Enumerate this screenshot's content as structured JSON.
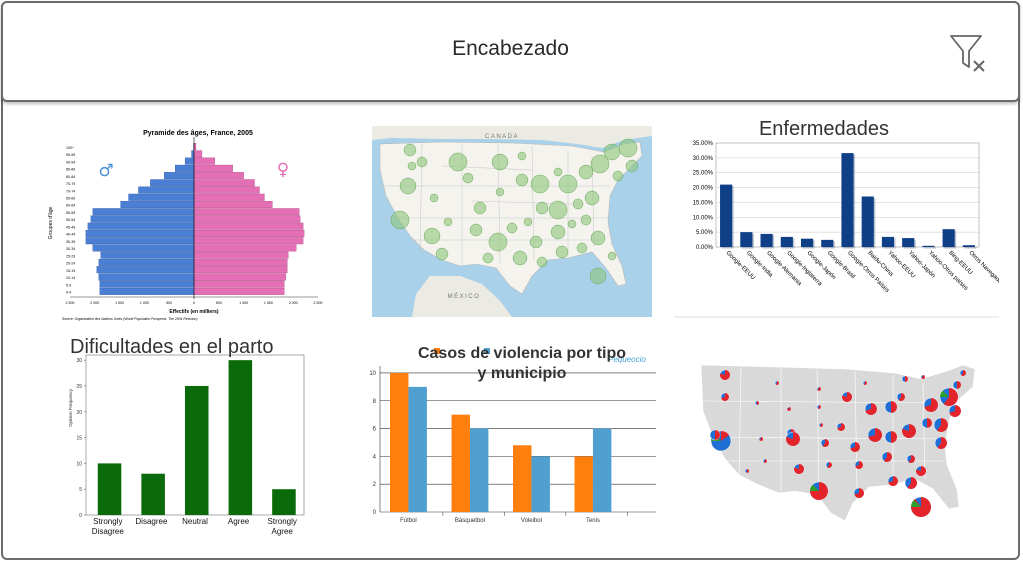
{
  "header": {
    "title": "Encabezado",
    "filter_icon": "filter-clear-icon"
  },
  "tiles": {
    "pyramid": {
      "title": "Pyramide des âges, France, 2005",
      "ylabel": "Groupes d'âge",
      "xlabel": "Effectifs (en milliers)",
      "source": "Source: Organisation des Nations Unies (World Population Prospects: The 2004 Revision)",
      "male_symbol": "♂",
      "female_symbol": "♀",
      "colors": {
        "male": "#4a7fd4",
        "female": "#e56fb4"
      }
    },
    "us_map_bubbles": {
      "label_canada": "CANADA",
      "label_mexico": "MÉXICO"
    },
    "diseases": {
      "title": "Enfermedades"
    },
    "birth": {
      "title": "Dificultades en el parto",
      "ylabel": "Opinion Frequency"
    },
    "violence": {
      "title_line1": "Casos de violencia por tipo",
      "title_line2": "y municipio",
      "logo": "Pequeocio"
    },
    "us_map_pies": {}
  },
  "chart_data": [
    {
      "type": "bar",
      "title": "Pyramide des âges, France, 2005",
      "xlabel": "Effectifs (en milliers)",
      "ylabel": "Groupes d'âge",
      "categories": [
        "0-4",
        "5-9",
        "10-14",
        "15-19",
        "20-24",
        "25-29",
        "30-34",
        "35-39",
        "40-44",
        "45-49",
        "50-54",
        "55-59",
        "60-64",
        "65-69",
        "70-74",
        "75-79",
        "80-84",
        "85-89",
        "90-94",
        "95-99",
        "100+"
      ],
      "series": [
        {
          "name": "♂",
          "values": [
            1900,
            1900,
            1920,
            1960,
            1920,
            1880,
            2040,
            2180,
            2180,
            2140,
            2080,
            2040,
            1480,
            1320,
            1120,
            880,
            600,
            380,
            180,
            50,
            10
          ]
        },
        {
          "name": "♀",
          "values": [
            1820,
            1820,
            1850,
            1880,
            1880,
            1900,
            2060,
            2200,
            2220,
            2200,
            2140,
            2120,
            1580,
            1420,
            1320,
            1220,
            1000,
            780,
            420,
            160,
            40
          ]
        }
      ],
      "xticks": [
        "2 500",
        "2 000",
        "1 500",
        "1 000",
        "500",
        "0",
        "500",
        "1 000",
        "1 500",
        "2 000",
        "2 500"
      ],
      "xlim": [
        -2500,
        2500
      ]
    },
    {
      "type": "bar",
      "title": "Enfermedades",
      "categories": [
        "Google-EEUU",
        "Google-India",
        "Google-Alemania",
        "Google-Inglaterra",
        "Google-Japón",
        "Google-Brasil",
        "Google-Otros Países",
        "Baidu-China",
        "Yahoo-EEUU",
        "Yahoo-Japón",
        "Yahoo-Otros países",
        "Bing-EEUU",
        "Otros Navegadores"
      ],
      "values": [
        21.0,
        5.0,
        4.4,
        3.4,
        2.8,
        2.4,
        31.6,
        17.0,
        3.4,
        3.0,
        0.4,
        6.0,
        0.6
      ],
      "yticks": [
        "0.00%",
        "5.00%",
        "10.00%",
        "15.00%",
        "20.00%",
        "25.00%",
        "30.00%",
        "35.00%"
      ],
      "ylim": [
        0,
        35
      ]
    },
    {
      "type": "bar",
      "title": "Dificultades en el parto",
      "ylabel": "Opinion Frequency",
      "categories": [
        "Strongly Disagree",
        "Disagree",
        "Neutral",
        "Agree",
        "Strongly Agree"
      ],
      "values": [
        10,
        8,
        25,
        30,
        5
      ],
      "yticks": [
        0,
        5,
        10,
        15,
        20,
        25,
        30
      ],
      "ylim": [
        0,
        31
      ]
    },
    {
      "type": "bar",
      "title": "Casos de violencia por tipo y municipio",
      "categories": [
        "Fútbol",
        "Básquetbol",
        "Voleibol",
        "Tenis"
      ],
      "series": [
        {
          "values": [
            10,
            7,
            4.8,
            4
          ]
        },
        {
          "values": [
            9,
            6,
            4,
            6
          ]
        }
      ],
      "yticks": [
        0,
        2,
        4,
        6,
        8,
        10
      ],
      "ylim": [
        0,
        10.5
      ]
    }
  ]
}
